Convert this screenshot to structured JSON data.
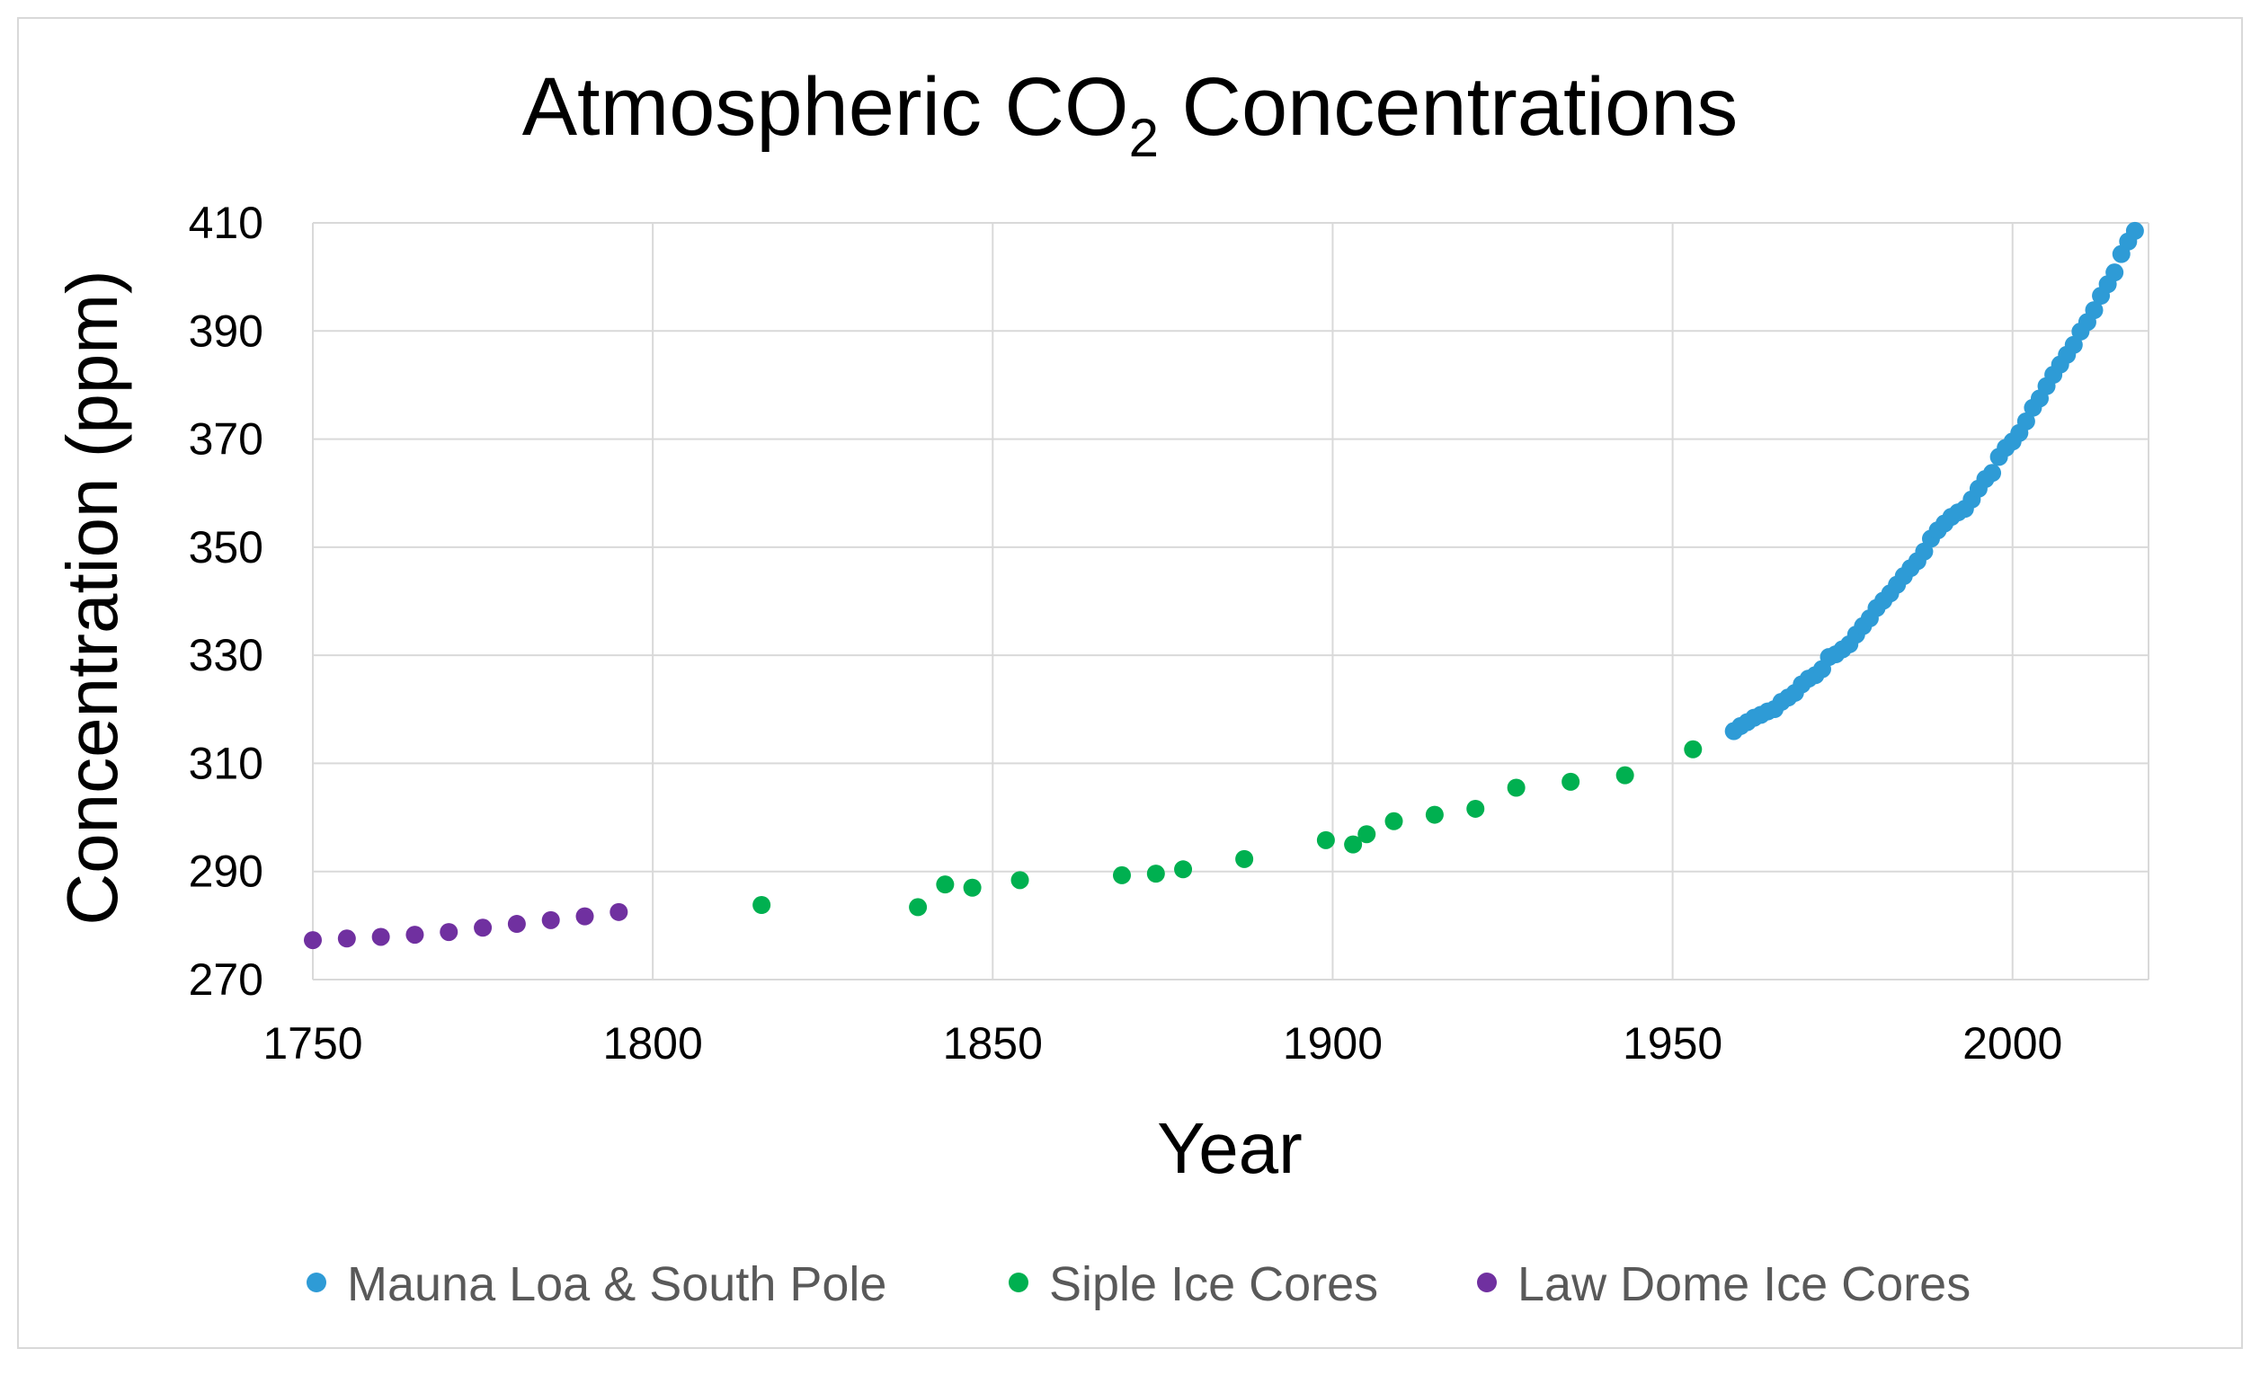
{
  "chart_data": {
    "type": "scatter",
    "title": {
      "main": "Atmospheric CO",
      "subscript": "2",
      "suffix": " Concentrations"
    },
    "xlabel": "Year",
    "ylabel": "Concentration (ppm)",
    "xlim": [
      1750,
      2020
    ],
    "ylim": [
      270,
      410
    ],
    "xticks": [
      "1750",
      "1800",
      "1850",
      "1900",
      "1950",
      "2000"
    ],
    "yticks": [
      "270",
      "290",
      "310",
      "330",
      "350",
      "370",
      "390",
      "410"
    ],
    "grid": true,
    "legend_position": "bottom",
    "series": [
      {
        "name": "Mauna Loa & South Pole",
        "color": "#2e9bd6",
        "points": [
          [
            1959,
            315.97
          ],
          [
            1960,
            316.91
          ],
          [
            1961,
            317.64
          ],
          [
            1962,
            318.45
          ],
          [
            1963,
            318.99
          ],
          [
            1964,
            319.62
          ],
          [
            1965,
            320.04
          ],
          [
            1966,
            321.37
          ],
          [
            1967,
            322.18
          ],
          [
            1968,
            323.05
          ],
          [
            1969,
            324.62
          ],
          [
            1970,
            325.68
          ],
          [
            1971,
            326.32
          ],
          [
            1972,
            327.45
          ],
          [
            1973,
            329.68
          ],
          [
            1974,
            330.18
          ],
          [
            1975,
            331.11
          ],
          [
            1976,
            332.04
          ],
          [
            1977,
            333.83
          ],
          [
            1978,
            335.4
          ],
          [
            1979,
            336.84
          ],
          [
            1980,
            338.75
          ],
          [
            1981,
            340.11
          ],
          [
            1982,
            341.45
          ],
          [
            1983,
            343.05
          ],
          [
            1984,
            344.65
          ],
          [
            1985,
            346.12
          ],
          [
            1986,
            347.42
          ],
          [
            1987,
            349.19
          ],
          [
            1988,
            351.57
          ],
          [
            1989,
            353.12
          ],
          [
            1990,
            354.39
          ],
          [
            1991,
            355.61
          ],
          [
            1992,
            356.45
          ],
          [
            1993,
            357.1
          ],
          [
            1994,
            358.83
          ],
          [
            1995,
            360.82
          ],
          [
            1996,
            362.61
          ],
          [
            1997,
            363.73
          ],
          [
            1998,
            366.7
          ],
          [
            1999,
            368.38
          ],
          [
            2000,
            369.55
          ],
          [
            2001,
            371.14
          ],
          [
            2002,
            373.28
          ],
          [
            2003,
            375.8
          ],
          [
            2004,
            377.52
          ],
          [
            2005,
            379.8
          ],
          [
            2006,
            381.9
          ],
          [
            2007,
            383.79
          ],
          [
            2008,
            385.6
          ],
          [
            2009,
            387.43
          ],
          [
            2010,
            389.9
          ],
          [
            2011,
            391.65
          ],
          [
            2012,
            393.85
          ],
          [
            2013,
            396.52
          ],
          [
            2014,
            398.65
          ],
          [
            2015,
            400.83
          ],
          [
            2016,
            404.24
          ],
          [
            2017,
            406.55
          ],
          [
            2018,
            408.52
          ]
        ]
      },
      {
        "name": "Siple Ice Cores",
        "color": "#00b050",
        "points": [
          [
            1816,
            283.8
          ],
          [
            1839,
            283.4
          ],
          [
            1843,
            287.6
          ],
          [
            1847,
            287.0
          ],
          [
            1854,
            288.4
          ],
          [
            1869,
            289.3
          ],
          [
            1874,
            289.6
          ],
          [
            1878,
            290.4
          ],
          [
            1887,
            292.3
          ],
          [
            1899,
            295.8
          ],
          [
            1903,
            295.0
          ],
          [
            1905,
            296.9
          ],
          [
            1909,
            299.3
          ],
          [
            1915,
            300.5
          ],
          [
            1921,
            301.6
          ],
          [
            1927,
            305.5
          ],
          [
            1935,
            306.6
          ],
          [
            1943,
            307.8
          ],
          [
            1953,
            312.6
          ]
        ]
      },
      {
        "name": "Law Dome Ice Cores",
        "color": "#7030a0",
        "points": [
          [
            1750,
            277.3
          ],
          [
            1755,
            277.6
          ],
          [
            1760,
            277.9
          ],
          [
            1765,
            278.3
          ],
          [
            1770,
            278.8
          ],
          [
            1775,
            279.6
          ],
          [
            1780,
            280.3
          ],
          [
            1785,
            281.0
          ],
          [
            1790,
            281.7
          ],
          [
            1795,
            282.5
          ]
        ]
      }
    ]
  }
}
